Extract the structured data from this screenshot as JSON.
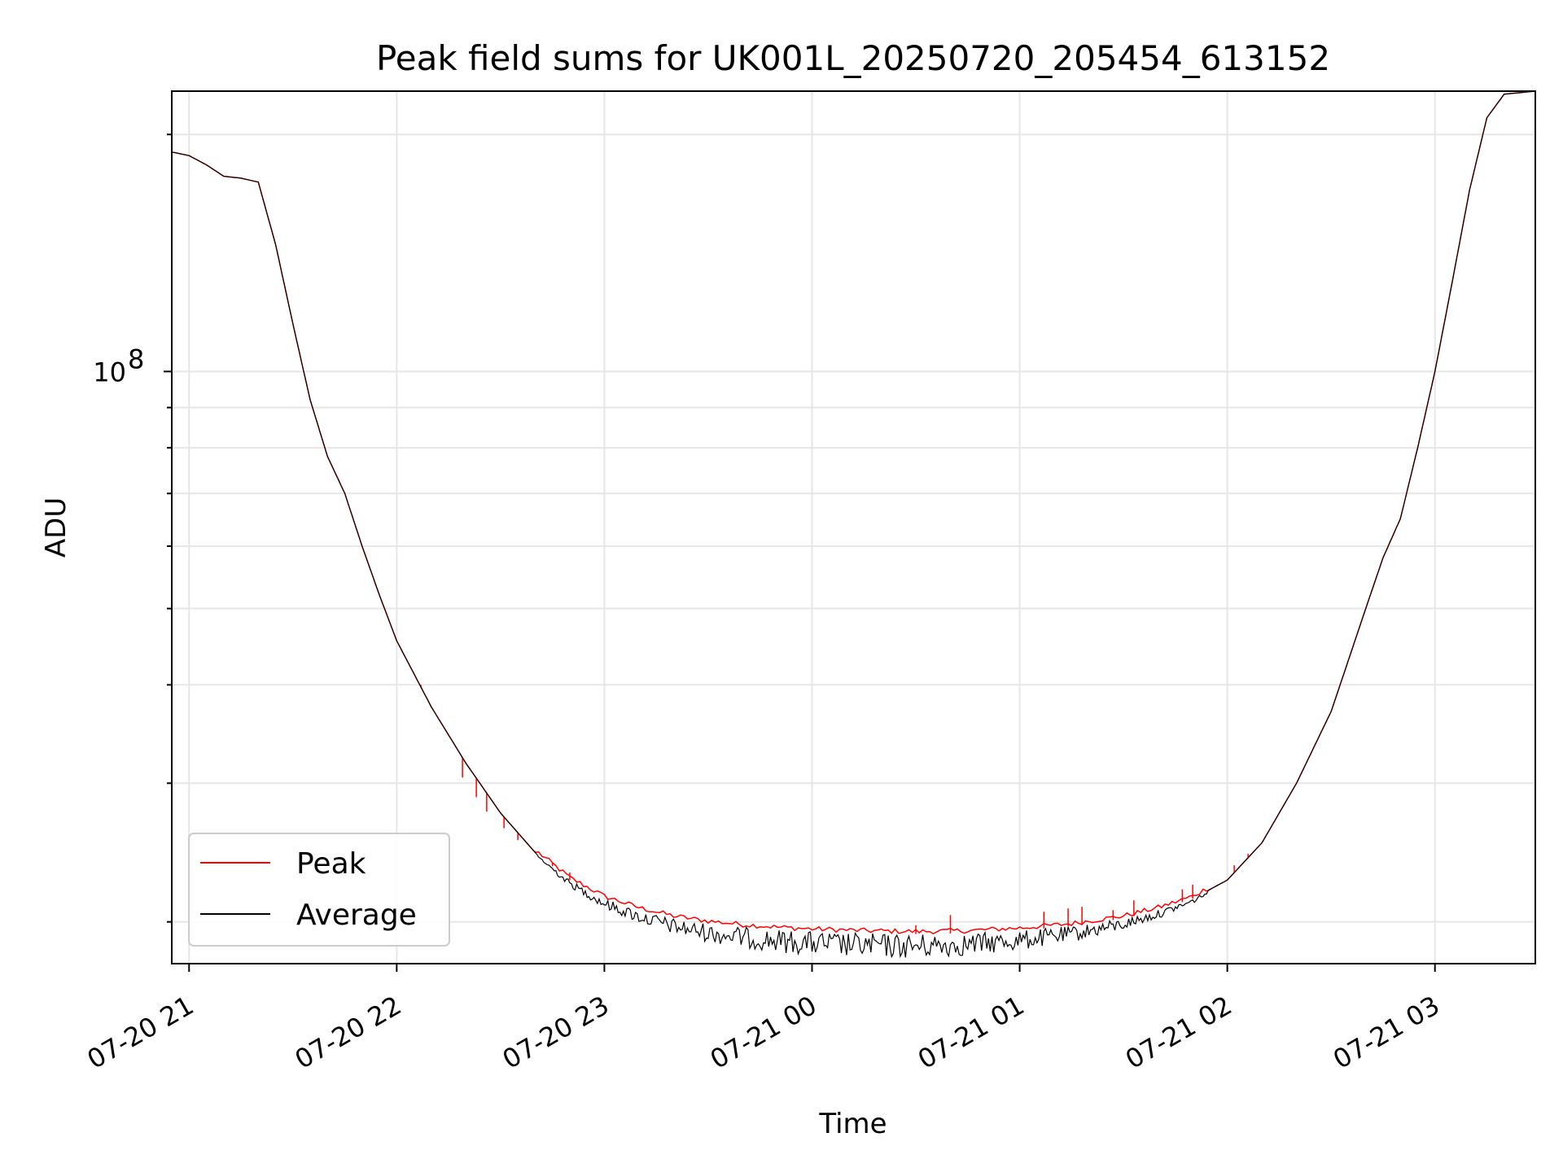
{
  "chart_data": {
    "type": "line",
    "title": "Peak field sums for UK001L_20250720_205454_613152",
    "xlabel": "Time",
    "ylabel": "ADU",
    "yscale": "log",
    "grid": true,
    "legend_position": "lower-left",
    "x_ticks": [
      "07-20 21",
      "07-20 22",
      "07-20 23",
      "07-21 00",
      "07-21 01",
      "07-21 02",
      "07-21 03"
    ],
    "y_ticks": [
      {
        "base": "10",
        "exp": "8",
        "value": 100000000
      }
    ],
    "xlim": [
      "2025-07-20 20:55",
      "2025-07-21 03:29"
    ],
    "ylim": [
      17700000,
      227000000
    ],
    "x": [
      "2025-07-20 20:55",
      "2025-07-20 21:00",
      "2025-07-20 21:05",
      "2025-07-20 21:10",
      "2025-07-20 21:15",
      "2025-07-20 21:20",
      "2025-07-20 21:25",
      "2025-07-20 21:30",
      "2025-07-20 21:35",
      "2025-07-20 21:40",
      "2025-07-20 21:45",
      "2025-07-20 21:50",
      "2025-07-20 21:55",
      "2025-07-20 22:00",
      "2025-07-20 22:10",
      "2025-07-20 22:20",
      "2025-07-20 22:30",
      "2025-07-20 22:40",
      "2025-07-20 22:50",
      "2025-07-20 23:00",
      "2025-07-20 23:10",
      "2025-07-20 23:20",
      "2025-07-20 23:30",
      "2025-07-20 23:40",
      "2025-07-20 23:50",
      "2025-07-21 00:00",
      "2025-07-21 00:15",
      "2025-07-21 00:30",
      "2025-07-21 00:45",
      "2025-07-21 01:00",
      "2025-07-21 01:15",
      "2025-07-21 01:30",
      "2025-07-21 01:40",
      "2025-07-21 01:50",
      "2025-07-21 02:00",
      "2025-07-21 02:10",
      "2025-07-21 02:20",
      "2025-07-21 02:30",
      "2025-07-21 02:35",
      "2025-07-21 02:40",
      "2025-07-21 02:45",
      "2025-07-21 02:50",
      "2025-07-21 02:55",
      "2025-07-21 03:00",
      "2025-07-21 03:05",
      "2025-07-21 03:10",
      "2025-07-21 03:15",
      "2025-07-21 03:20",
      "2025-07-21 03:29"
    ],
    "series": [
      {
        "name": "Peak",
        "color": "#ff0000",
        "values": [
          190000000,
          188000000,
          183000000,
          177000000,
          176000000,
          174000000,
          145000000,
          115000000,
          92000000,
          78000000,
          70000000,
          60000000,
          52000000,
          45500000,
          37500000,
          31800000,
          27500000,
          24500000,
          22600000,
          21400000,
          20700000,
          20200000,
          19900000,
          19700000,
          19550000,
          19450000,
          19350000,
          19300000,
          19350000,
          19500000,
          19750000,
          20200000,
          20700000,
          21400000,
          22600000,
          25200000,
          30000000,
          37000000,
          43000000,
          50000000,
          58000000,
          65000000,
          80000000,
          100000000,
          130000000,
          170000000,
          210000000,
          225000000,
          227000000
        ],
        "spikes": [
          {
            "x": "2025-07-20 22:07",
            "y": 40000000
          },
          {
            "x": "2025-07-20 22:19",
            "y": 30500000
          },
          {
            "x": "2025-07-20 22:23",
            "y": 28800000
          },
          {
            "x": "2025-07-20 22:26",
            "y": 27600000
          },
          {
            "x": "2025-07-20 22:31",
            "y": 26300000
          },
          {
            "x": "2025-07-20 22:35",
            "y": 25400000
          },
          {
            "x": "2025-07-20 22:40",
            "y": 24600000
          },
          {
            "x": "2025-07-20 22:45",
            "y": 23800000
          },
          {
            "x": "2025-07-20 22:50",
            "y": 23100000
          },
          {
            "x": "2025-07-21 00:30",
            "y": 19800000
          },
          {
            "x": "2025-07-21 00:40",
            "y": 20400000
          },
          {
            "x": "2025-07-21 01:07",
            "y": 20600000
          },
          {
            "x": "2025-07-21 01:14",
            "y": 20800000
          },
          {
            "x": "2025-07-21 01:18",
            "y": 20900000
          },
          {
            "x": "2025-07-21 01:27",
            "y": 20700000
          },
          {
            "x": "2025-07-21 01:33",
            "y": 21300000
          },
          {
            "x": "2025-07-21 01:47",
            "y": 22000000
          },
          {
            "x": "2025-07-21 01:50",
            "y": 22300000
          },
          {
            "x": "2025-07-21 02:02",
            "y": 23600000
          },
          {
            "x": "2025-07-21 02:06",
            "y": 24400000
          }
        ]
      },
      {
        "name": "Average",
        "color": "#000000",
        "values": [
          190000000,
          188000000,
          183000000,
          177000000,
          176000000,
          174000000,
          145000000,
          115000000,
          92000000,
          78000000,
          70000000,
          60000000,
          52000000,
          45500000,
          37500000,
          31800000,
          27500000,
          24500000,
          22600000,
          21400000,
          20700000,
          20200000,
          19900000,
          19700000,
          19550000,
          19450000,
          19350000,
          19300000,
          19350000,
          19500000,
          19750000,
          20200000,
          20700000,
          21400000,
          22600000,
          25200000,
          30000000,
          37000000,
          43000000,
          50000000,
          58000000,
          65000000,
          80000000,
          100000000,
          130000000,
          170000000,
          210000000,
          225000000,
          227000000
        ],
        "noise_range": [
          "2025-07-20 22:40",
          "2025-07-21 01:55"
        ]
      }
    ]
  }
}
